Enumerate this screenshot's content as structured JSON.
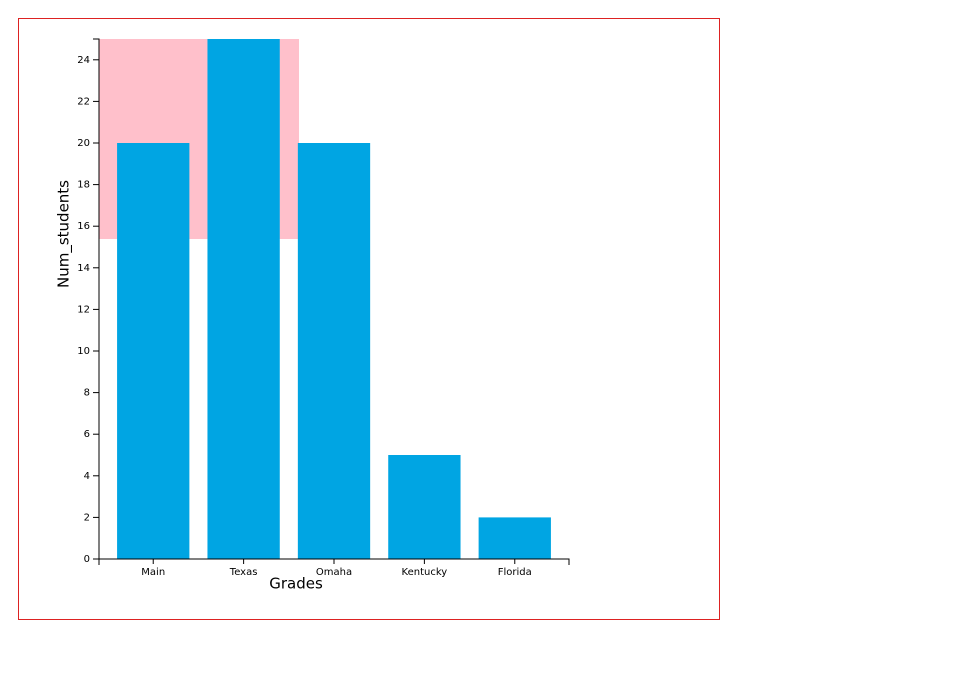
{
  "chart_data": {
    "type": "bar",
    "x_label": "Grades",
    "y_label": "Num_students",
    "categories": [
      "Main",
      "Texas",
      "Omaha",
      "Kentucky",
      "Florida"
    ],
    "values": [
      20,
      25,
      20,
      5,
      2
    ],
    "color": "#00a5e3",
    "ylim": [
      0,
      25
    ],
    "yticks": [
      0,
      2,
      4,
      6,
      8,
      10,
      12,
      14,
      16,
      18,
      20,
      22,
      24
    ],
    "grid": false
  }
}
